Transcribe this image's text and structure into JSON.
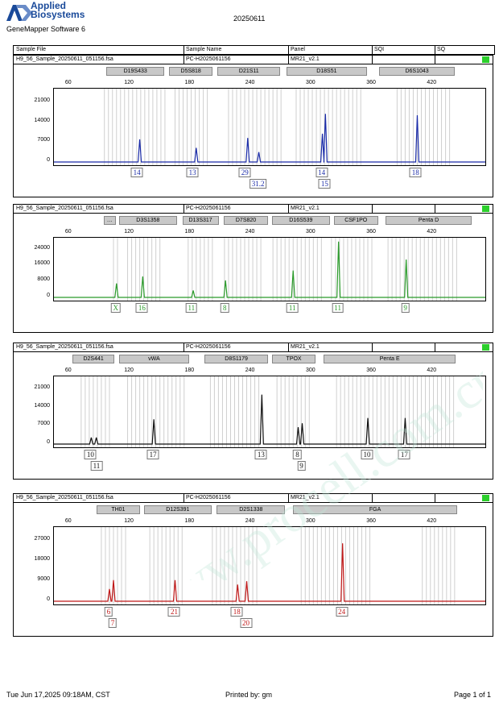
{
  "header": {
    "brand_line1": "Applied",
    "brand_line2": "Biosystems",
    "software": "GeneMapper Software 6",
    "run_date": "20250611"
  },
  "columns": {
    "sample_file": "Sample File",
    "sample_name": "Sample Name",
    "panel": "Panel",
    "sqi": "SQI",
    "sq": "SQ"
  },
  "watermark": "www.procell.com.cn",
  "x_ticks": [
    "60",
    "120",
    "180",
    "240",
    "300",
    "360",
    "420"
  ],
  "panels": [
    {
      "sample_file": "H9_56_Sample_20250611_051156.fsa",
      "sample_name": "PC-H2025061156",
      "panel": "MR21_v2.1",
      "color": "#1a2ba8",
      "y_ticks": [
        "21000",
        "14000",
        "7000",
        "0"
      ],
      "loci": [
        {
          "name": "D19S433",
          "start": 98,
          "end": 155
        },
        {
          "name": "D5S818",
          "start": 160,
          "end": 203
        },
        {
          "name": "D21S11",
          "start": 208,
          "end": 270
        },
        {
          "name": "D18S51",
          "start": 276,
          "end": 356
        },
        {
          "name": "D6S1043",
          "start": 368,
          "end": 443
        }
      ],
      "peaks": [
        {
          "x": 130,
          "h": 8000
        },
        {
          "x": 186,
          "h": 5000
        },
        {
          "x": 237,
          "h": 8500
        },
        {
          "x": 248,
          "h": 3500
        },
        {
          "x": 311,
          "h": 10000
        },
        {
          "x": 314,
          "h": 17000
        },
        {
          "x": 405,
          "h": 16500
        }
      ],
      "alleles": [
        {
          "label": "14",
          "x": 128,
          "row": 0
        },
        {
          "label": "13",
          "x": 183,
          "row": 0
        },
        {
          "label": "29",
          "x": 235,
          "row": 0
        },
        {
          "label": "31.2",
          "x": 248,
          "row": 1
        },
        {
          "label": "14",
          "x": 311,
          "row": 0
        },
        {
          "label": "15",
          "x": 314,
          "row": 1
        },
        {
          "label": "18",
          "x": 404,
          "row": 0
        }
      ],
      "bins": [
        [
          95,
          155
        ],
        [
          165,
          200
        ],
        [
          218,
          270
        ],
        [
          285,
          350
        ],
        [
          385,
          440
        ]
      ]
    },
    {
      "sample_file": "H9_56_Sample_20250611_051156.fsa",
      "sample_name": "PC-H2025061156",
      "panel": "MR21_v2.1",
      "color": "#2a9a2a",
      "y_ticks": [
        "24000",
        "16000",
        "8000",
        "0"
      ],
      "loci": [
        {
          "name": "…",
          "start": 95,
          "end": 107
        },
        {
          "name": "D3S1358",
          "start": 110,
          "end": 168
        },
        {
          "name": "D13S317",
          "start": 173,
          "end": 209
        },
        {
          "name": "D7S820",
          "start": 214,
          "end": 258
        },
        {
          "name": "D16S539",
          "start": 262,
          "end": 319
        },
        {
          "name": "CSF1PO",
          "start": 323,
          "end": 367
        },
        {
          "name": "Penta D",
          "start": 374,
          "end": 460
        }
      ],
      "peaks": [
        {
          "x": 107,
          "h": 7000
        },
        {
          "x": 133,
          "h": 10500
        },
        {
          "x": 183,
          "h": 3500
        },
        {
          "x": 215,
          "h": 8500
        },
        {
          "x": 282,
          "h": 13500
        },
        {
          "x": 327,
          "h": 28000
        },
        {
          "x": 394,
          "h": 19000
        }
      ],
      "alleles": [
        {
          "label": "X",
          "x": 107,
          "row": 0
        },
        {
          "label": "16",
          "x": 133,
          "row": 0
        },
        {
          "label": "11",
          "x": 182,
          "row": 0
        },
        {
          "label": "8",
          "x": 215,
          "row": 0
        },
        {
          "label": "11",
          "x": 282,
          "row": 0
        },
        {
          "label": "11",
          "x": 327,
          "row": 0
        },
        {
          "label": "9",
          "x": 394,
          "row": 0
        }
      ],
      "bins": [
        [
          104,
          110
        ],
        [
          118,
          150
        ],
        [
          178,
          205
        ],
        [
          214,
          250
        ],
        [
          262,
          310
        ],
        [
          320,
          362
        ],
        [
          376,
          444
        ]
      ]
    },
    {
      "sample_file": "H9_56_Sample_20250611_051156.fsa",
      "sample_name": "PC-H2025061156",
      "panel": "MR21_v2.1",
      "color": "#111111",
      "y_ticks": [
        "21000",
        "14000",
        "7000",
        "0"
      ],
      "loci": [
        {
          "name": "D2S441",
          "start": 64,
          "end": 106
        },
        {
          "name": "vWA",
          "start": 110,
          "end": 180
        },
        {
          "name": "D8S1179",
          "start": 195,
          "end": 258
        },
        {
          "name": "TPOX",
          "start": 262,
          "end": 305
        },
        {
          "name": "Penta E",
          "start": 313,
          "end": 444
        }
      ],
      "peaks": [
        {
          "x": 82,
          "h": 2500
        },
        {
          "x": 87,
          "h": 2500
        },
        {
          "x": 144,
          "h": 9500
        },
        {
          "x": 251,
          "h": 19000
        },
        {
          "x": 287,
          "h": 6500
        },
        {
          "x": 291,
          "h": 8000
        },
        {
          "x": 356,
          "h": 10000
        },
        {
          "x": 393,
          "h": 10000
        }
      ],
      "alleles": [
        {
          "label": "10",
          "x": 82,
          "row": 0
        },
        {
          "label": "11",
          "x": 88,
          "row": 1
        },
        {
          "label": "17",
          "x": 144,
          "row": 0
        },
        {
          "label": "13",
          "x": 251,
          "row": 0
        },
        {
          "label": "8",
          "x": 287,
          "row": 0
        },
        {
          "label": "9",
          "x": 291,
          "row": 1
        },
        {
          "label": "10",
          "x": 356,
          "row": 0
        },
        {
          "label": "17",
          "x": 393,
          "row": 0
        }
      ],
      "bins": [
        [
          72,
          100
        ],
        [
          118,
          175
        ],
        [
          200,
          250
        ],
        [
          266,
          300
        ],
        [
          325,
          444
        ]
      ]
    },
    {
      "sample_file": "H9_56_Sample_20250611_051156.fsa",
      "sample_name": "PC-H2025061156",
      "panel": "MR21_v2.1",
      "color": "#c01818",
      "y_ticks": [
        "27000",
        "18000",
        "9000",
        "0"
      ],
      "loci": [
        {
          "name": "TH01",
          "start": 88,
          "end": 131
        },
        {
          "name": "D12S391",
          "start": 135,
          "end": 202
        },
        {
          "name": "D2S1338",
          "start": 207,
          "end": 275
        },
        {
          "name": "FGA",
          "start": 283,
          "end": 445
        }
      ],
      "peaks": [
        {
          "x": 100,
          "h": 5500
        },
        {
          "x": 104,
          "h": 9500
        },
        {
          "x": 165,
          "h": 9500
        },
        {
          "x": 227,
          "h": 7500
        },
        {
          "x": 236,
          "h": 9000
        },
        {
          "x": 331,
          "h": 26000
        }
      ],
      "alleles": [
        {
          "label": "6",
          "x": 100,
          "row": 0
        },
        {
          "label": "7",
          "x": 104,
          "row": 1
        },
        {
          "label": "21",
          "x": 165,
          "row": 0
        },
        {
          "label": "18",
          "x": 227,
          "row": 0
        },
        {
          "label": "20",
          "x": 236,
          "row": 1
        },
        {
          "label": "24",
          "x": 331,
          "row": 0
        }
      ],
      "bins": [
        [
          92,
          118
        ],
        [
          140,
          175
        ],
        [
          202,
          248
        ],
        [
          290,
          360
        ],
        [
          410,
          442
        ]
      ]
    }
  ],
  "footer": {
    "printed_on": "Tue Jun 17,2025 09:18AM, CST",
    "printed_by": "Printed by: gm",
    "page": "Page 1 of 1"
  }
}
